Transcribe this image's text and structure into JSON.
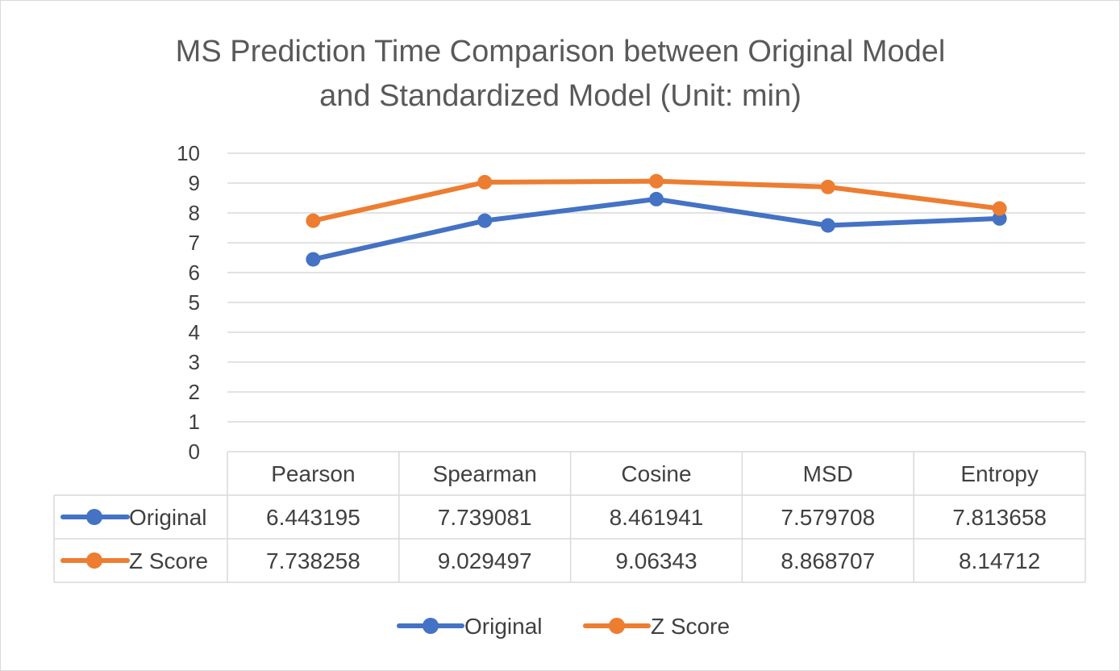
{
  "chart_data": {
    "type": "line",
    "title_line1": "MS Prediction Time Comparison between Original Model",
    "title_line2": "and Standardized Model (Unit: min)",
    "categories": [
      "Pearson",
      "Spearman",
      "Cosine",
      "MSD",
      "Entropy"
    ],
    "series": [
      {
        "name": "Original",
        "color": "#4472C4",
        "values": [
          6.443195,
          7.739081,
          8.461941,
          7.579708,
          7.813658
        ],
        "labels": [
          "6.443195",
          "7.739081",
          "8.461941",
          "7.579708",
          "7.813658"
        ]
      },
      {
        "name": "Z Score",
        "color": "#ED7D31",
        "values": [
          7.738258,
          9.029497,
          9.06343,
          8.868707,
          8.14712
        ],
        "labels": [
          "7.738258",
          "9.029497",
          "9.06343",
          "8.868707",
          "8.14712"
        ]
      }
    ],
    "ylim": [
      0,
      10
    ],
    "yticks": [
      "0",
      "1",
      "2",
      "3",
      "4",
      "5",
      "6",
      "7",
      "8",
      "9",
      "10"
    ],
    "grid": true,
    "data_table": true,
    "legend_position": "bottom"
  }
}
